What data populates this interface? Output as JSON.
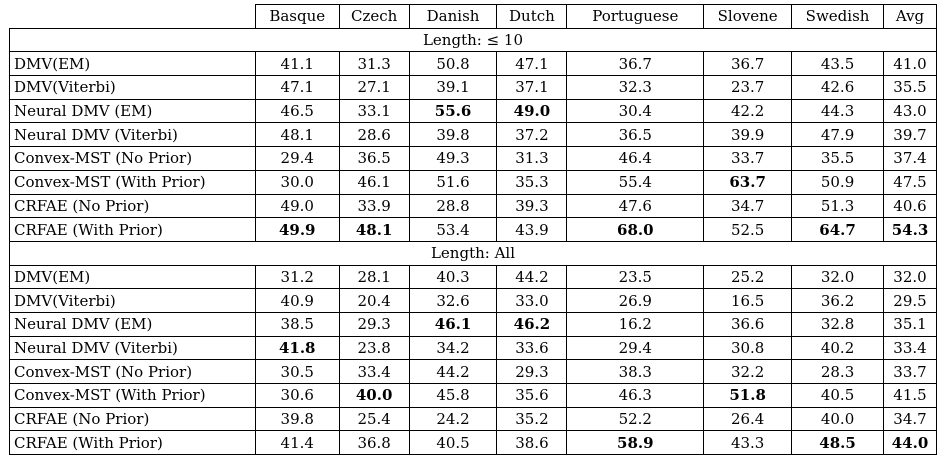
{
  "columns": [
    "Basque",
    "Czech",
    "Danish",
    "Dutch",
    "Portuguese",
    "Slovene",
    "Swedish",
    "Avg"
  ],
  "sections": [
    {
      "title": "Length: ≤ 10",
      "rows": [
        {
          "method": "DMV(EM)",
          "values": [
            "41.1",
            "31.3",
            "50.8",
            "47.1",
            "36.7",
            "36.7",
            "43.5",
            "41.0"
          ],
          "bold": []
        },
        {
          "method": "DMV(Viterbi)",
          "values": [
            "47.1",
            "27.1",
            "39.1",
            "37.1",
            "32.3",
            "23.7",
            "42.6",
            "35.5"
          ],
          "bold": []
        },
        {
          "method": "Neural DMV (EM)",
          "values": [
            "46.5",
            "33.1",
            "55.6",
            "49.0",
            "30.4",
            "42.2",
            "44.3",
            "43.0"
          ],
          "bold": [
            2,
            3
          ]
        },
        {
          "method": "Neural DMV (Viterbi)",
          "values": [
            "48.1",
            "28.6",
            "39.8",
            "37.2",
            "36.5",
            "39.9",
            "47.9",
            "39.7"
          ],
          "bold": []
        },
        {
          "method": "Convex-MST (No Prior)",
          "values": [
            "29.4",
            "36.5",
            "49.3",
            "31.3",
            "46.4",
            "33.7",
            "35.5",
            "37.4"
          ],
          "bold": []
        },
        {
          "method": "Convex-MST (With Prior)",
          "values": [
            "30.0",
            "46.1",
            "51.6",
            "35.3",
            "55.4",
            "63.7",
            "50.9",
            "47.5"
          ],
          "bold": [
            5
          ]
        },
        {
          "method": "CRFAE (No Prior)",
          "values": [
            "49.0",
            "33.9",
            "28.8",
            "39.3",
            "47.6",
            "34.7",
            "51.3",
            "40.6"
          ],
          "bold": []
        },
        {
          "method": "CRFAE (With Prior)",
          "values": [
            "49.9",
            "48.1",
            "53.4",
            "43.9",
            "68.0",
            "52.5",
            "64.7",
            "54.3"
          ],
          "bold": [
            0,
            1,
            4,
            6,
            7
          ]
        }
      ]
    },
    {
      "title": "Length: All",
      "rows": [
        {
          "method": "DMV(EM)",
          "values": [
            "31.2",
            "28.1",
            "40.3",
            "44.2",
            "23.5",
            "25.2",
            "32.0",
            "32.0"
          ],
          "bold": []
        },
        {
          "method": "DMV(Viterbi)",
          "values": [
            "40.9",
            "20.4",
            "32.6",
            "33.0",
            "26.9",
            "16.5",
            "36.2",
            "29.5"
          ],
          "bold": []
        },
        {
          "method": "Neural DMV (EM)",
          "values": [
            "38.5",
            "29.3",
            "46.1",
            "46.2",
            "16.2",
            "36.6",
            "32.8",
            "35.1"
          ],
          "bold": [
            2,
            3
          ]
        },
        {
          "method": "Neural DMV (Viterbi)",
          "values": [
            "41.8",
            "23.8",
            "34.2",
            "33.6",
            "29.4",
            "30.8",
            "40.2",
            "33.4"
          ],
          "bold": [
            0
          ]
        },
        {
          "method": "Convex-MST (No Prior)",
          "values": [
            "30.5",
            "33.4",
            "44.2",
            "29.3",
            "38.3",
            "32.2",
            "28.3",
            "33.7"
          ],
          "bold": []
        },
        {
          "method": "Convex-MST (With Prior)",
          "values": [
            "30.6",
            "40.0",
            "45.8",
            "35.6",
            "46.3",
            "51.8",
            "40.5",
            "41.5"
          ],
          "bold": [
            1,
            5
          ]
        },
        {
          "method": "CRFAE (No Prior)",
          "values": [
            "39.8",
            "25.4",
            "24.2",
            "35.2",
            "52.2",
            "26.4",
            "40.0",
            "34.7"
          ],
          "bold": []
        },
        {
          "method": "CRFAE (With Prior)",
          "values": [
            "41.4",
            "36.8",
            "40.5",
            "38.6",
            "58.9",
            "43.3",
            "48.5",
            "44.0"
          ],
          "bold": [
            4,
            6,
            7
          ]
        }
      ]
    }
  ]
}
